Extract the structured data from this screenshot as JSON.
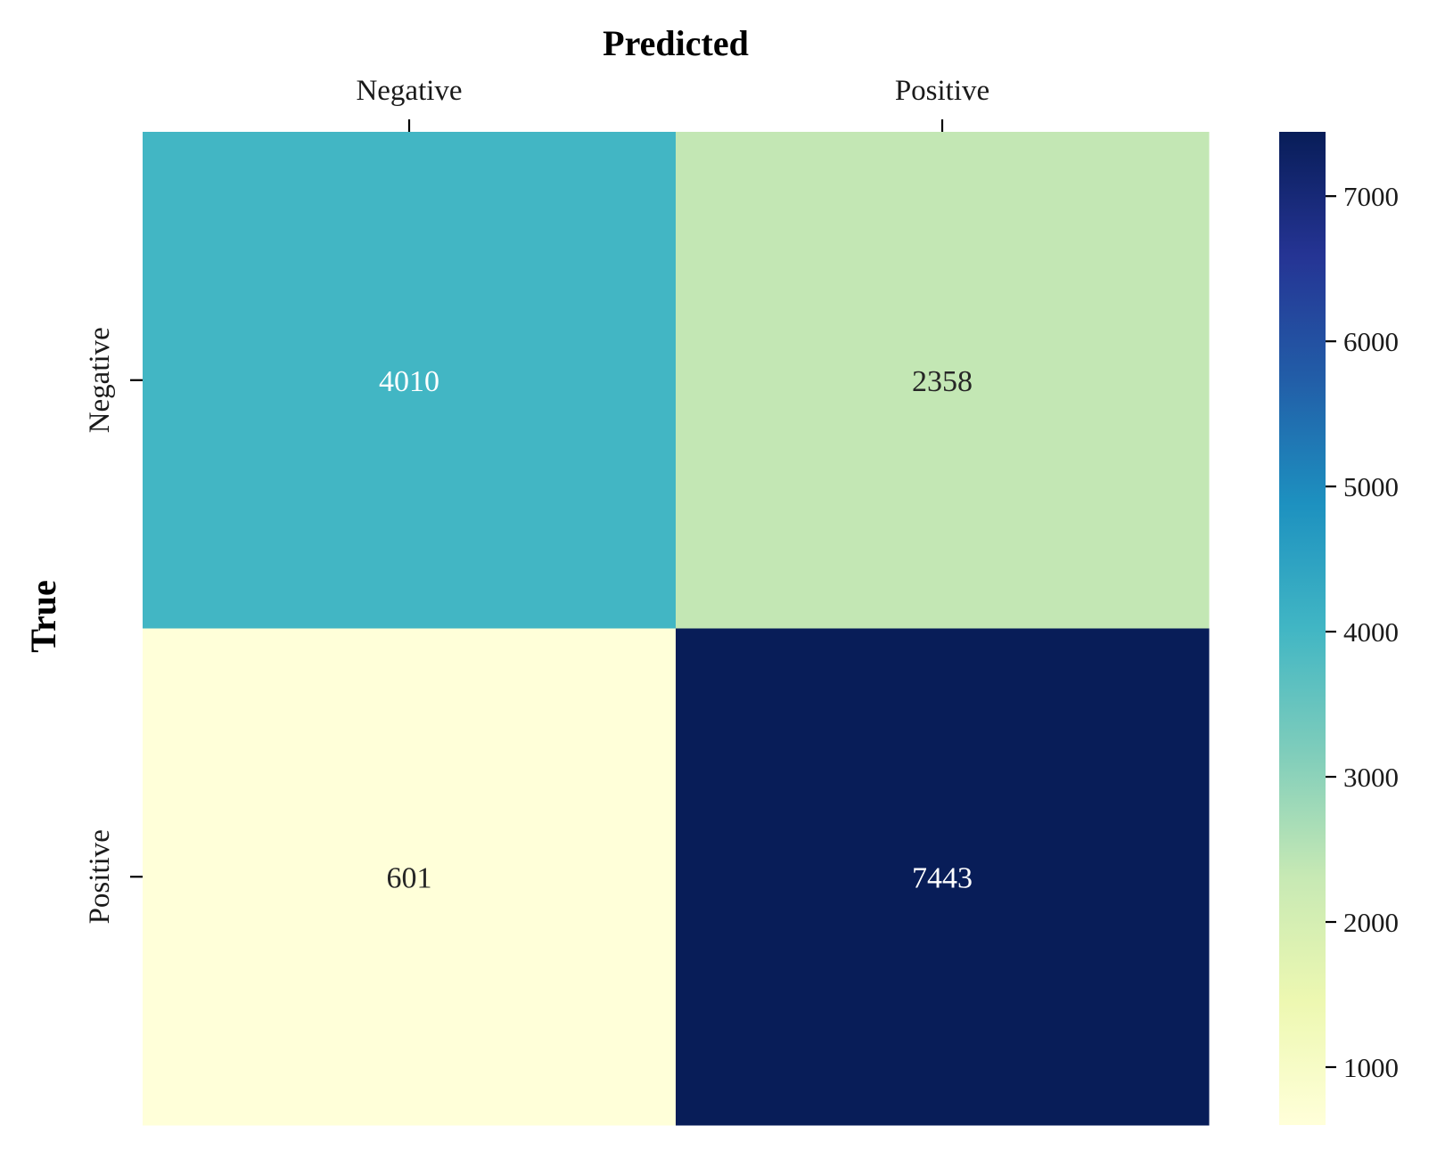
{
  "chart_data": {
    "type": "heatmap",
    "title": "",
    "xlabel": "Predicted",
    "ylabel": "True",
    "x_categories": [
      "Negative",
      "Positive"
    ],
    "y_categories": [
      "Negative",
      "Positive"
    ],
    "x_axis_position": "top",
    "values": [
      [
        4010,
        2358
      ],
      [
        601,
        7443
      ]
    ],
    "colormap": "YlGnBu",
    "colorbar": {
      "min": 601,
      "max": 7443,
      "ticks": [
        1000,
        2000,
        3000,
        4000,
        5000,
        6000,
        7000
      ],
      "tick_labels": [
        "1000",
        "2000",
        "3000",
        "4000",
        "5000",
        "6000",
        "7000"
      ],
      "placement": "right"
    },
    "grid": false,
    "colors": {
      "ylgnbu": [
        "#ffffd9",
        "#edf8b1",
        "#c7e9b4",
        "#7fcdbb",
        "#41b6c4",
        "#1d91c0",
        "#225ea8",
        "#253494",
        "#081d58"
      ],
      "text_on_dark": "#ffffff",
      "text_on_light": "#262626"
    }
  }
}
